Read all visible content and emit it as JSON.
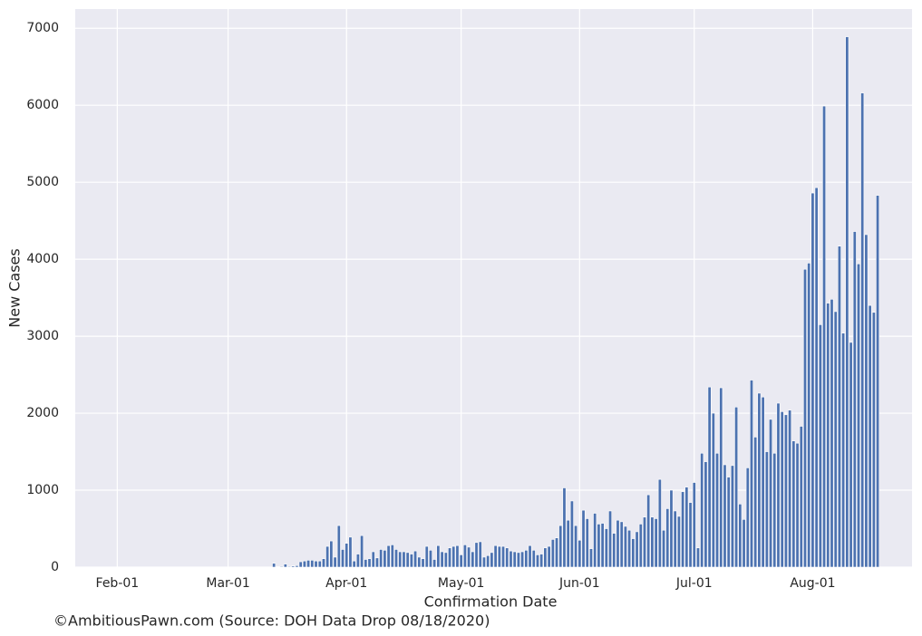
{
  "chart_data": {
    "type": "bar",
    "x_label": "Confirmation Date",
    "y_label": "New Cases",
    "footnote": "©AmbitiousPawn.com (Source: DOH Data Drop 08/18/2020)",
    "color": "#4c72b0",
    "grid": true,
    "xlim": [
      "Jan-21",
      "Aug-27"
    ],
    "xticks": [
      "Feb-01",
      "Mar-01",
      "Apr-01",
      "May-01",
      "Jun-01",
      "Jul-01",
      "Aug-01"
    ],
    "ylim": [
      0,
      7250
    ],
    "yticks": [
      0,
      1000,
      2000,
      3000,
      4000,
      5000,
      6000,
      7000
    ],
    "x": [
      "Mar-13",
      "Mar-14",
      "Mar-15",
      "Mar-16",
      "Mar-17",
      "Mar-18",
      "Mar-19",
      "Mar-20",
      "Mar-21",
      "Mar-22",
      "Mar-23",
      "Mar-24",
      "Mar-25",
      "Mar-26",
      "Mar-27",
      "Mar-28",
      "Mar-29",
      "Mar-30",
      "Mar-31",
      "Apr-01",
      "Apr-02",
      "Apr-03",
      "Apr-04",
      "Apr-05",
      "Apr-06",
      "Apr-07",
      "Apr-08",
      "Apr-09",
      "Apr-10",
      "Apr-11",
      "Apr-12",
      "Apr-13",
      "Apr-14",
      "Apr-15",
      "Apr-16",
      "Apr-17",
      "Apr-18",
      "Apr-19",
      "Apr-20",
      "Apr-21",
      "Apr-22",
      "Apr-23",
      "Apr-24",
      "Apr-25",
      "Apr-26",
      "Apr-27",
      "Apr-28",
      "Apr-29",
      "Apr-30",
      "May-01",
      "May-02",
      "May-03",
      "May-04",
      "May-05",
      "May-06",
      "May-07",
      "May-08",
      "May-09",
      "May-10",
      "May-11",
      "May-12",
      "May-13",
      "May-14",
      "May-15",
      "May-16",
      "May-17",
      "May-18",
      "May-19",
      "May-20",
      "May-21",
      "May-22",
      "May-23",
      "May-24",
      "May-25",
      "May-26",
      "May-27",
      "May-28",
      "May-29",
      "May-30",
      "May-31",
      "Jun-01",
      "Jun-02",
      "Jun-03",
      "Jun-04",
      "Jun-05",
      "Jun-06",
      "Jun-07",
      "Jun-08",
      "Jun-09",
      "Jun-10",
      "Jun-11",
      "Jun-12",
      "Jun-13",
      "Jun-14",
      "Jun-15",
      "Jun-16",
      "Jun-17",
      "Jun-18",
      "Jun-19",
      "Jun-20",
      "Jun-21",
      "Jun-22",
      "Jun-23",
      "Jun-24",
      "Jun-25",
      "Jun-26",
      "Jun-27",
      "Jun-28",
      "Jun-29",
      "Jun-30",
      "Jul-01",
      "Jul-02",
      "Jul-03",
      "Jul-04",
      "Jul-05",
      "Jul-06",
      "Jul-07",
      "Jul-08",
      "Jul-09",
      "Jul-10",
      "Jul-11",
      "Jul-12",
      "Jul-13",
      "Jul-14",
      "Jul-15",
      "Jul-16",
      "Jul-17",
      "Jul-18",
      "Jul-19",
      "Jul-20",
      "Jul-21",
      "Jul-22",
      "Jul-23",
      "Jul-24",
      "Jul-25",
      "Jul-26",
      "Jul-27",
      "Jul-28",
      "Jul-29",
      "Jul-30",
      "Jul-31",
      "Aug-01",
      "Aug-02",
      "Aug-03",
      "Aug-04",
      "Aug-05",
      "Aug-06",
      "Aug-07",
      "Aug-08",
      "Aug-09",
      "Aug-10",
      "Aug-11",
      "Aug-12",
      "Aug-13",
      "Aug-14",
      "Aug-15",
      "Aug-16",
      "Aug-17",
      "Aug-18"
    ],
    "values": [
      50,
      5,
      10,
      40,
      10,
      15,
      20,
      70,
      80,
      90,
      90,
      80,
      80,
      110,
      270,
      340,
      130,
      540,
      230,
      310,
      390,
      80,
      170,
      410,
      100,
      110,
      200,
      120,
      230,
      220,
      280,
      290,
      230,
      200,
      200,
      190,
      170,
      210,
      130,
      110,
      270,
      220,
      100,
      280,
      200,
      190,
      250,
      270,
      280,
      160,
      290,
      260,
      200,
      320,
      330,
      130,
      150,
      190,
      280,
      270,
      270,
      250,
      210,
      200,
      190,
      200,
      220,
      280,
      220,
      160,
      170,
      250,
      270,
      360,
      380,
      540,
      1030,
      610,
      860,
      540,
      350,
      740,
      630,
      240,
      700,
      560,
      570,
      500,
      730,
      440,
      610,
      590,
      530,
      480,
      370,
      460,
      560,
      650,
      940,
      650,
      630,
      1140,
      480,
      760,
      1000,
      730,
      660,
      980,
      1040,
      840,
      1100,
      250,
      1480,
      1370,
      2340,
      2000,
      1480,
      2330,
      1330,
      1170,
      1320,
      2080,
      820,
      620,
      1290,
      2430,
      1690,
      2260,
      2210,
      1500,
      1920,
      1480,
      2130,
      2020,
      1980,
      2040,
      1640,
      1610,
      1830,
      3870,
      3950,
      4860,
      4930,
      3150,
      5990,
      3430,
      3480,
      3320,
      4170,
      3040,
      6890,
      2920,
      4360,
      3940,
      6160,
      4320,
      3400,
      3310,
      4830
    ]
  }
}
